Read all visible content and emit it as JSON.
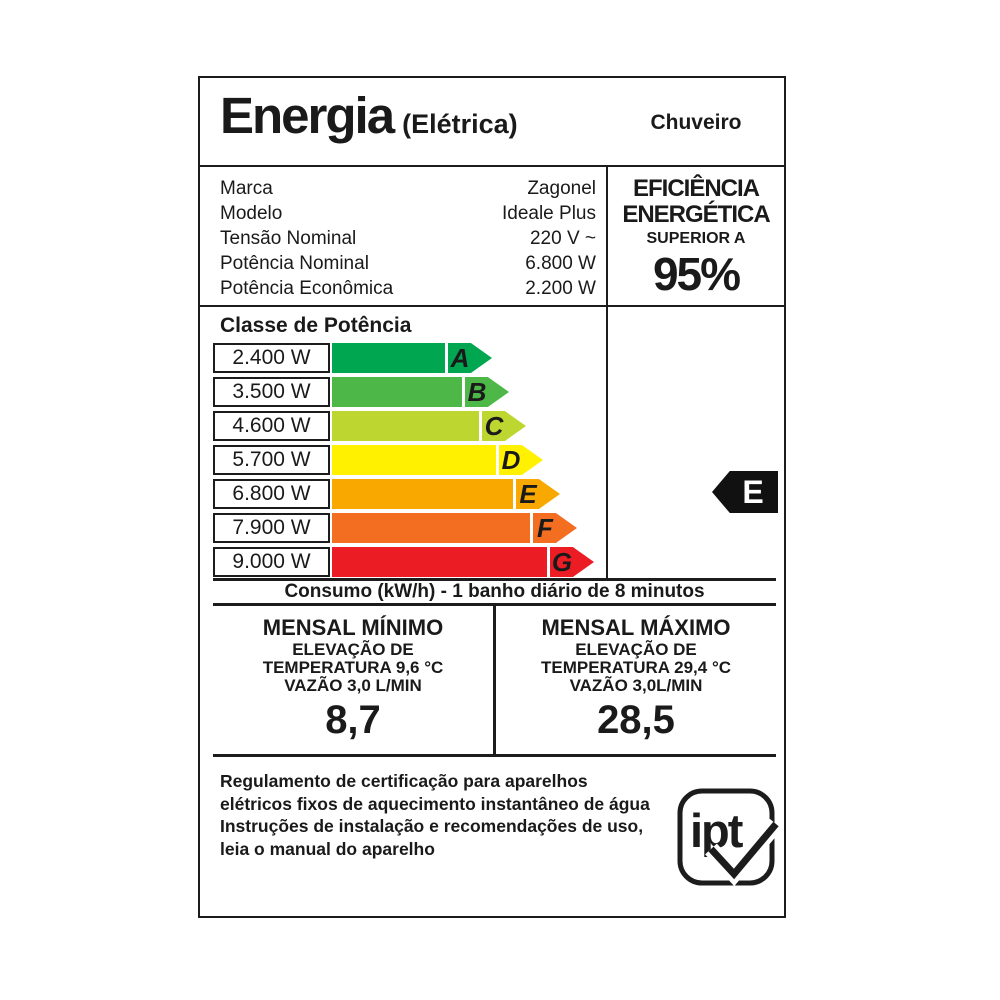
{
  "header": {
    "title": "Energia",
    "title_suffix": "(Elétrica)",
    "product": "Chuveiro"
  },
  "info": {
    "rows": [
      {
        "label": "Marca",
        "value": "Zagonel"
      },
      {
        "label": "Modelo",
        "value": "Ideale Plus"
      },
      {
        "label": "Tensão Nominal",
        "value": "220 V ~"
      },
      {
        "label": "Potência Nominal",
        "value": "6.800 W"
      },
      {
        "label": "Potência Econômica",
        "value": "2.200 W"
      }
    ]
  },
  "efficiency": {
    "line1": "EFICIÊNCIA",
    "line2": "ENERGÉTICA",
    "line3": "SUPERIOR A",
    "value": "95%"
  },
  "power_class": {
    "title": "Classe de Potência",
    "selected": "E",
    "rows": [
      {
        "watts": "2.400 W",
        "letter": "A",
        "color": "#00A650",
        "bar": 113
      },
      {
        "watts": "3.500 W",
        "letter": "B",
        "color": "#4DB848",
        "bar": 130
      },
      {
        "watts": "4.600 W",
        "letter": "C",
        "color": "#BED630",
        "bar": 147
      },
      {
        "watts": "5.700 W",
        "letter": "D",
        "color": "#FFF100",
        "bar": 164
      },
      {
        "watts": "6.800 W",
        "letter": "E",
        "color": "#F9A800",
        "bar": 181
      },
      {
        "watts": "7.900 W",
        "letter": "F",
        "color": "#F36E21",
        "bar": 198
      },
      {
        "watts": "9.000 W",
        "letter": "G",
        "color": "#EC1C24",
        "bar": 215
      }
    ]
  },
  "consumption": {
    "header": "Consumo (kW/h) - 1 banho diário de 8 minutos",
    "columns": [
      {
        "title": "MENSAL MÍNIMO",
        "line1": "ELEVAÇÃO DE",
        "line2": "TEMPERATURA 9,6 °C",
        "line3": "VAZÃO 3,0 L/MIN",
        "value": "8,7"
      },
      {
        "title": "MENSAL MÁXIMO",
        "line1": "ELEVAÇÃO DE",
        "line2": "TEMPERATURA 29,4 °C",
        "line3": "VAZÃO 3,0L/MIN",
        "value": "28,5"
      }
    ]
  },
  "footer": {
    "lines": [
      "Regulamento de certificação para aparelhos",
      "elétricos fixos de aquecimento instantâneo de água",
      "Instruções de instalação e recomendações de uso,",
      "leia o manual do aparelho"
    ],
    "logo_text": "ipt"
  },
  "chart_data": {
    "type": "bar",
    "title": "Classe de Potência",
    "categories": [
      "A",
      "B",
      "C",
      "D",
      "E",
      "F",
      "G"
    ],
    "values": [
      2400,
      3500,
      4600,
      5700,
      6800,
      7900,
      9000
    ],
    "unit": "W",
    "selected_class": "E",
    "colors": [
      "#00A650",
      "#4DB848",
      "#BED630",
      "#FFF100",
      "#F9A800",
      "#F36E21",
      "#EC1C24"
    ],
    "legend_position": "none",
    "orientation": "horizontal"
  }
}
